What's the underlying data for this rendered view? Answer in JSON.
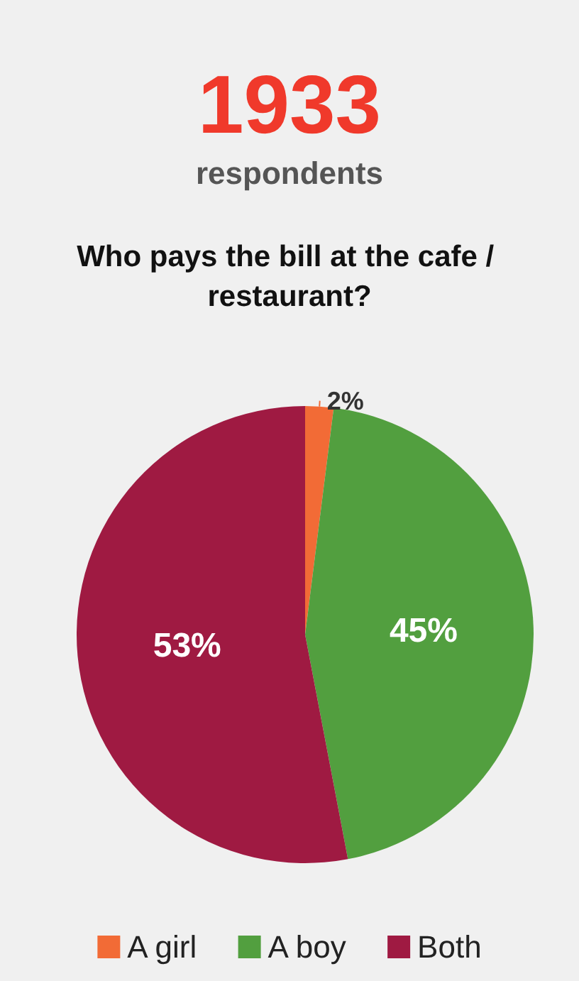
{
  "chart_data": {
    "type": "pie",
    "title": "Who pays the bill at the cafe / restaurant?",
    "annotations": [
      "1933",
      "respondents"
    ],
    "categories": [
      "A girl",
      "A boy",
      "Both"
    ],
    "values": [
      2,
      45,
      53
    ],
    "colors": [
      "#f26b36",
      "#529f3f",
      "#9f1a42"
    ],
    "value_labels": [
      "2%",
      "45%",
      "53%"
    ],
    "legend": "bottom"
  }
}
